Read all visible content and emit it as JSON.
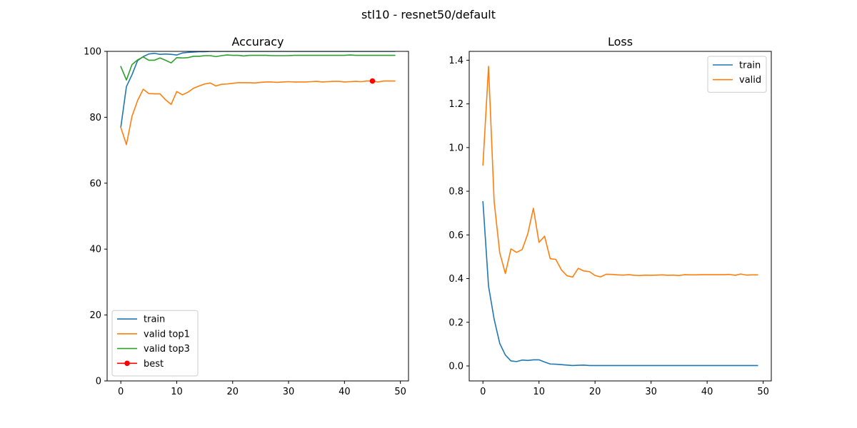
{
  "figure_title": "stl10 - resnet50/default",
  "chart_data": [
    {
      "type": "line",
      "title": "Accuracy",
      "xlabel": "",
      "ylabel": "",
      "xlim": [
        -2.45,
        51.45
      ],
      "ylim": [
        0,
        100
      ],
      "xticks": [
        0,
        10,
        20,
        30,
        40,
        50
      ],
      "yticks": [
        0,
        20,
        40,
        60,
        80,
        100
      ],
      "grid": false,
      "legend_position": "lower-left",
      "series": [
        {
          "name": "train",
          "color": "#1f77b4",
          "x": [
            0,
            1,
            2,
            3,
            4,
            5,
            6,
            7,
            8,
            9,
            10,
            11,
            12,
            13,
            14,
            15,
            16,
            17,
            18,
            19,
            20,
            21,
            22,
            23,
            24,
            25,
            26,
            27,
            28,
            29,
            30,
            31,
            32,
            33,
            34,
            35,
            36,
            37,
            38,
            39,
            40,
            41,
            42,
            43,
            44,
            45,
            46,
            47,
            48,
            49
          ],
          "values": [
            77.0,
            89.3,
            92.9,
            97.2,
            98.4,
            99.2,
            99.4,
            99.1,
            99.2,
            99.1,
            98.9,
            99.5,
            99.7,
            99.8,
            99.9,
            99.9,
            100,
            100,
            100,
            100,
            100,
            100,
            100,
            100,
            100,
            100,
            100,
            100,
            100,
            100,
            100,
            100,
            100,
            100,
            100,
            100,
            100,
            100,
            100,
            100,
            100,
            100,
            100,
            100,
            100,
            100,
            100,
            100,
            100,
            100
          ]
        },
        {
          "name": "valid top1",
          "color": "#ff7f0e",
          "x": [
            0,
            1,
            2,
            3,
            4,
            5,
            6,
            7,
            8,
            9,
            10,
            11,
            12,
            13,
            14,
            15,
            16,
            17,
            18,
            19,
            20,
            21,
            22,
            23,
            24,
            25,
            26,
            27,
            28,
            29,
            30,
            31,
            32,
            33,
            34,
            35,
            36,
            37,
            38,
            39,
            40,
            41,
            42,
            43,
            44,
            45,
            46,
            47,
            48,
            49
          ],
          "values": [
            76.9,
            71.7,
            80.3,
            85.1,
            88.5,
            87.2,
            87.1,
            87.1,
            85.3,
            83.9,
            87.8,
            86.8,
            87.6,
            88.8,
            89.5,
            90.1,
            90.4,
            89.5,
            90.0,
            90.1,
            90.3,
            90.5,
            90.5,
            90.5,
            90.4,
            90.6,
            90.7,
            90.7,
            90.6,
            90.7,
            90.8,
            90.7,
            90.7,
            90.7,
            90.8,
            90.9,
            90.7,
            90.8,
            90.9,
            90.9,
            90.7,
            90.8,
            90.9,
            90.8,
            91.0,
            91.0,
            90.7,
            91.0,
            91.0,
            91.0
          ]
        },
        {
          "name": "valid top3",
          "color": "#2ca02c",
          "x": [
            0,
            1,
            2,
            3,
            4,
            5,
            6,
            7,
            8,
            9,
            10,
            11,
            12,
            13,
            14,
            15,
            16,
            17,
            18,
            19,
            20,
            21,
            22,
            23,
            24,
            25,
            26,
            27,
            28,
            29,
            30,
            31,
            32,
            33,
            34,
            35,
            36,
            37,
            38,
            39,
            40,
            41,
            42,
            43,
            44,
            45,
            46,
            47,
            48,
            49
          ],
          "values": [
            95.4,
            91.3,
            96.0,
            97.4,
            98.3,
            97.3,
            97.3,
            98.0,
            97.3,
            96.5,
            98.1,
            98.0,
            98.1,
            98.5,
            98.5,
            98.7,
            98.7,
            98.4,
            98.7,
            98.9,
            98.8,
            98.8,
            98.6,
            98.8,
            98.8,
            98.8,
            98.8,
            98.7,
            98.7,
            98.7,
            98.7,
            98.8,
            98.8,
            98.8,
            98.8,
            98.8,
            98.8,
            98.8,
            98.8,
            98.8,
            98.8,
            98.9,
            98.8,
            98.8,
            98.8,
            98.8,
            98.8,
            98.8,
            98.8,
            98.8
          ]
        }
      ],
      "markers": [
        {
          "name": "best",
          "color": "#ff0000",
          "x": 45,
          "y": 91.0
        }
      ]
    },
    {
      "type": "line",
      "title": "Loss",
      "xlabel": "",
      "ylabel": "",
      "xlim": [
        -2.45,
        51.45
      ],
      "ylim": [
        -0.0686,
        1.4406
      ],
      "xticks": [
        0,
        10,
        20,
        30,
        40,
        50
      ],
      "yticks": [
        0.0,
        0.2,
        0.4,
        0.6,
        0.8,
        1.0,
        1.2,
        1.4
      ],
      "ytick_labels": [
        "0.0",
        "0.2",
        "0.4",
        "0.6",
        "0.8",
        "1.0",
        "1.2",
        "1.4"
      ],
      "grid": false,
      "legend_position": "upper-right",
      "series": [
        {
          "name": "train",
          "color": "#1f77b4",
          "x": [
            0,
            1,
            2,
            3,
            4,
            5,
            6,
            7,
            8,
            9,
            10,
            11,
            12,
            13,
            14,
            15,
            16,
            17,
            18,
            19,
            20,
            21,
            22,
            23,
            24,
            25,
            26,
            27,
            28,
            29,
            30,
            31,
            32,
            33,
            34,
            35,
            36,
            37,
            38,
            39,
            40,
            41,
            42,
            43,
            44,
            45,
            46,
            47,
            48,
            49
          ],
          "values": [
            0.752,
            0.365,
            0.214,
            0.103,
            0.05,
            0.023,
            0.02,
            0.027,
            0.025,
            0.028,
            0.028,
            0.018,
            0.009,
            0.008,
            0.006,
            0.004,
            0.002,
            0.003,
            0.004,
            0.002,
            0.002,
            0.002,
            0.002,
            0.002,
            0.002,
            0.002,
            0.002,
            0.002,
            0.002,
            0.002,
            0.002,
            0.002,
            0.002,
            0.002,
            0.002,
            0.002,
            0.002,
            0.002,
            0.002,
            0.002,
            0.002,
            0.002,
            0.002,
            0.002,
            0.002,
            0.002,
            0.002,
            0.002,
            0.002,
            0.002
          ]
        },
        {
          "name": "valid",
          "color": "#ff7f0e",
          "x": [
            0,
            1,
            2,
            3,
            4,
            5,
            6,
            7,
            8,
            9,
            10,
            11,
            12,
            13,
            14,
            15,
            16,
            17,
            18,
            19,
            20,
            21,
            22,
            23,
            24,
            25,
            26,
            27,
            28,
            29,
            30,
            31,
            32,
            33,
            34,
            35,
            36,
            37,
            38,
            39,
            40,
            41,
            42,
            43,
            44,
            45,
            46,
            47,
            48,
            49
          ],
          "values": [
            0.92,
            1.372,
            0.752,
            0.518,
            0.423,
            0.536,
            0.52,
            0.533,
            0.605,
            0.722,
            0.566,
            0.594,
            0.491,
            0.488,
            0.44,
            0.413,
            0.407,
            0.447,
            0.435,
            0.432,
            0.414,
            0.408,
            0.42,
            0.419,
            0.417,
            0.416,
            0.418,
            0.415,
            0.414,
            0.416,
            0.415,
            0.416,
            0.417,
            0.415,
            0.416,
            0.414,
            0.418,
            0.417,
            0.417,
            0.418,
            0.418,
            0.418,
            0.418,
            0.418,
            0.419,
            0.415,
            0.421,
            0.416,
            0.417,
            0.417
          ]
        }
      ]
    }
  ]
}
